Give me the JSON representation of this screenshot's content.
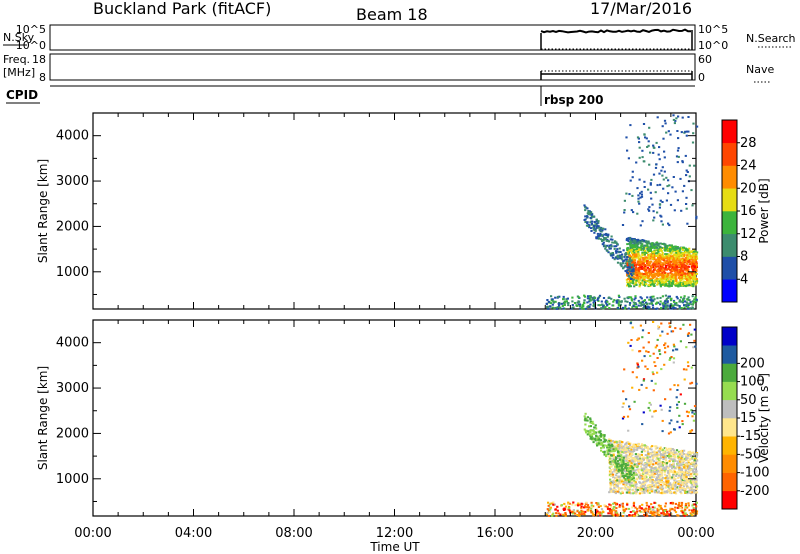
{
  "header": {
    "station": "Buckland Park (fitACF)",
    "beam": "Beam 18",
    "date": "17/Mar/2016"
  },
  "strips": {
    "nsky_label": "N.Sky",
    "nsky_ticks": [
      "10^5",
      "10^0"
    ],
    "nsearch_label": "N.Search",
    "nsearch_ticks": [
      "10^5",
      "10^0"
    ],
    "freq_label_line1": "Freq.",
    "freq_label_line2": "[MHz]",
    "freq_ticks": [
      "18",
      "8"
    ],
    "nave_label": "Nave",
    "nave_ticks": [
      "60",
      "0"
    ],
    "cpid_label": "CPID",
    "cpid_value": "rbsp 200"
  },
  "chart_data": [
    {
      "type": "heatmap",
      "name": "power",
      "xlabel": "Time UT",
      "ylabel": "Slant Range [km]",
      "x_ticks": [
        "00:00",
        "04:00",
        "08:00",
        "12:00",
        "16:00",
        "20:00",
        "00:00"
      ],
      "x_range_hours": [
        0,
        24
      ],
      "y_ticks": [
        "1000",
        "2000",
        "3000",
        "4000"
      ],
      "ylim": [
        180,
        4500
      ],
      "data_start_hour": 18.0,
      "colorbar": {
        "label": "Power [dB]",
        "ticks": [
          "4",
          "8",
          "12",
          "16",
          "20",
          "24",
          "28"
        ],
        "colors": [
          "#0000ff",
          "#1f4fa8",
          "#3c8c6e",
          "#3cb43c",
          "#e6dc14",
          "#ff8c00",
          "#ff4600",
          "#ff0000"
        ]
      },
      "features": [
        {
          "feature": "near-range echoes",
          "time_hours": [
            18.0,
            24.0
          ],
          "range_km": [
            180,
            500
          ],
          "power_db": [
            4,
            16
          ]
        },
        {
          "feature": "main scatter band",
          "time_hours": [
            21.2,
            24.0
          ],
          "range_km": [
            800,
            1500
          ],
          "power_db": [
            16,
            30
          ]
        },
        {
          "feature": "descending streak",
          "time_hours": [
            19.5,
            21.5
          ],
          "range_km": [
            1000,
            2300
          ],
          "power_db": [
            4,
            12
          ]
        },
        {
          "feature": "sparse far-range scatter",
          "time_hours": [
            21.0,
            24.0
          ],
          "range_km": [
            2000,
            4500
          ],
          "power_db": [
            4,
            10
          ]
        }
      ]
    },
    {
      "type": "heatmap",
      "name": "velocity",
      "xlabel": "Time UT",
      "ylabel": "Slant Range [km]",
      "x_ticks": [
        "00:00",
        "04:00",
        "08:00",
        "12:00",
        "16:00",
        "20:00",
        "00:00"
      ],
      "x_range_hours": [
        0,
        24
      ],
      "y_ticks": [
        "1000",
        "2000",
        "3000",
        "4000"
      ],
      "ylim": [
        180,
        4500
      ],
      "data_start_hour": 18.0,
      "colorbar": {
        "label_prefix": "Velocity ",
        "label_units": "[m s",
        "label_exp": "-1",
        "label_close": "]",
        "ticks": [
          "-200",
          "-100",
          "-50",
          "-15",
          "15",
          "50",
          "100",
          "200"
        ],
        "colors": [
          "#ff0000",
          "#ff6400",
          "#ff8c00",
          "#ffb400",
          "#ffe68c",
          "#bebebe",
          "#96dc50",
          "#4baa3c",
          "#1e5aa0",
          "#0000c8"
        ]
      },
      "features": [
        {
          "feature": "near-range echoes",
          "time_hours": [
            18.0,
            24.0
          ],
          "range_km": [
            180,
            500
          ],
          "velocity_ms": [
            -250,
            50
          ]
        },
        {
          "feature": "main scatter band",
          "time_hours": [
            20.5,
            24.0
          ],
          "range_km": [
            800,
            1600
          ],
          "velocity_ms": [
            -15,
            15
          ]
        },
        {
          "feature": "descending streak",
          "time_hours": [
            19.5,
            21.5
          ],
          "range_km": [
            1000,
            2300
          ],
          "velocity_ms": [
            15,
            100
          ]
        },
        {
          "feature": "sparse far-range scatter",
          "time_hours": [
            21.0,
            24.0
          ],
          "range_km": [
            2000,
            4500
          ],
          "velocity_ms": [
            -200,
            200
          ]
        }
      ]
    }
  ]
}
